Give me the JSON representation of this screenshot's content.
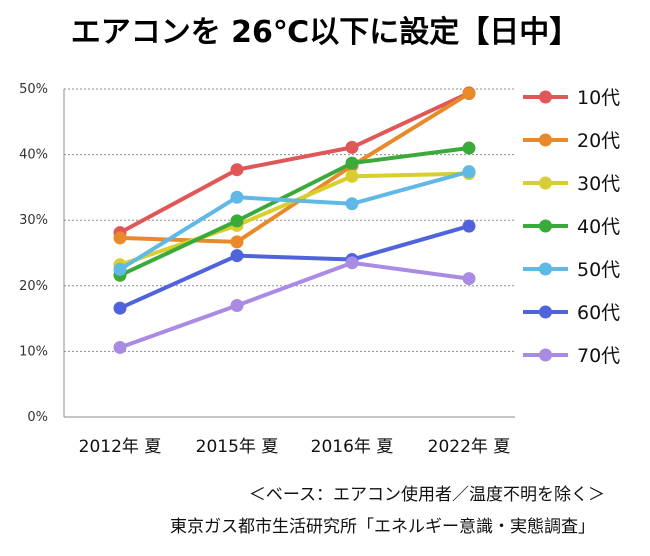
{
  "chart_data": {
    "type": "line",
    "title": "エアコンを 26℃以下に設定【日中】",
    "categories": [
      "2012年 夏",
      "2015年 夏",
      "2016年 夏",
      "2022年 夏"
    ],
    "y_ticks": [
      "0%",
      "10%",
      "20%",
      "30%",
      "40%",
      "50%"
    ],
    "ylim": [
      0,
      50
    ],
    "grid": true,
    "legend_position": "right",
    "series": [
      {
        "name": "10代",
        "color": "#e05757",
        "values": [
          28.1,
          37.7,
          41.1,
          49.4
        ]
      },
      {
        "name": "20代",
        "color": "#e88a2a",
        "values": [
          27.3,
          26.7,
          38.3,
          49.3
        ]
      },
      {
        "name": "30代",
        "color": "#d8cf2e",
        "values": [
          23.2,
          29.2,
          36.7,
          37.1
        ]
      },
      {
        "name": "40代",
        "color": "#3aaa3a",
        "values": [
          21.6,
          29.9,
          38.7,
          41.0
        ]
      },
      {
        "name": "50代",
        "color": "#5fb8e6",
        "values": [
          22.5,
          33.5,
          32.5,
          37.4
        ]
      },
      {
        "name": "60代",
        "color": "#4f63dd",
        "values": [
          16.6,
          24.6,
          24.0,
          29.1
        ]
      },
      {
        "name": "70代",
        "color": "#a98be3",
        "values": [
          10.6,
          17.0,
          23.5,
          21.1
        ]
      }
    ]
  },
  "notes": {
    "base": "＜ベース：エアコン使用者／温度不明を除く＞",
    "source": "東京ガス都市生活研究所「エネルギー意識・実態調査」"
  }
}
